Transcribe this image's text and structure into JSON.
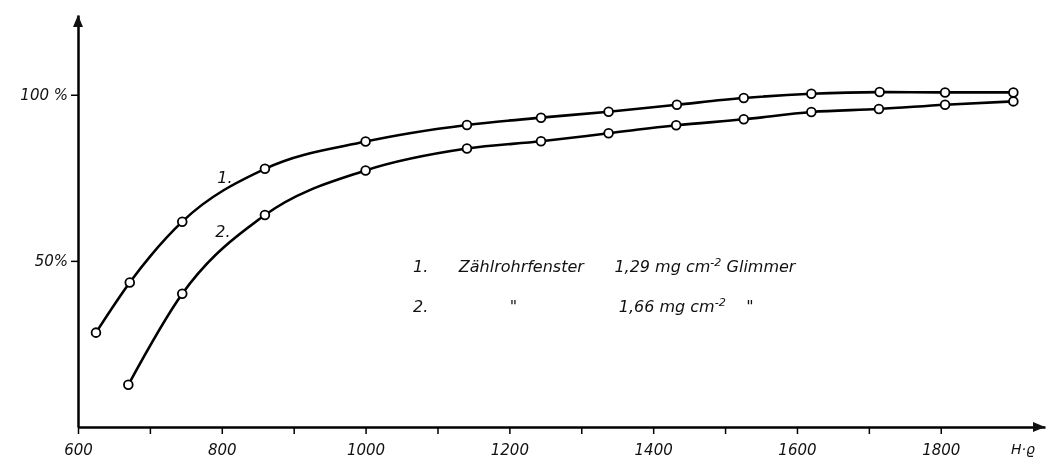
{
  "chart_data": {
    "type": "line",
    "xlabel": "H·ϱ",
    "xlim": [
      600,
      1945
    ],
    "xticks": [
      600,
      {
        "value": 700,
        "label": null
      },
      800,
      {
        "value": 900,
        "label": null
      },
      1000,
      {
        "value": 1100,
        "label": null
      },
      1200,
      {
        "value": 1300,
        "label": null
      },
      1400,
      {
        "value": 1500,
        "label": null
      },
      1600,
      {
        "value": 1700,
        "label": null
      },
      1800
    ],
    "ylim": [
      0,
      124
    ],
    "yticks": [
      {
        "value": 50,
        "label": "50%"
      },
      {
        "value": 100,
        "label": "100 %"
      }
    ],
    "marker": "circle",
    "line_style": "solid",
    "grid": false,
    "legend": false,
    "series": [
      {
        "name": "1.",
        "color": "#000000",
        "x": [
          625,
          672,
          745,
          860,
          1000,
          1141,
          1244,
          1338,
          1433,
          1526,
          1620,
          1715,
          1806,
          1901
        ],
        "values": [
          28.4,
          43.5,
          61.8,
          77.7,
          85.9,
          90.9,
          93.1,
          94.9,
          97.0,
          99.0,
          100.3,
          100.8,
          100.7,
          100.7
        ]
      },
      {
        "name": "2.",
        "color": "#000000",
        "x": [
          670,
          745,
          860,
          1000,
          1141,
          1244,
          1338,
          1432,
          1526,
          1620,
          1714,
          1806,
          1901
        ],
        "values": [
          12.7,
          40.1,
          63.8,
          77.2,
          83.8,
          86.0,
          88.4,
          90.8,
          92.6,
          94.8,
          95.7,
          97.0,
          98.0
        ]
      }
    ],
    "annotations": [
      "1.      Zählrohrfenster      1,29 mg cm$^{-2}$ Glimmer",
      "2.                \"                    1,66 mg cm$^{-2}$    \""
    ]
  }
}
